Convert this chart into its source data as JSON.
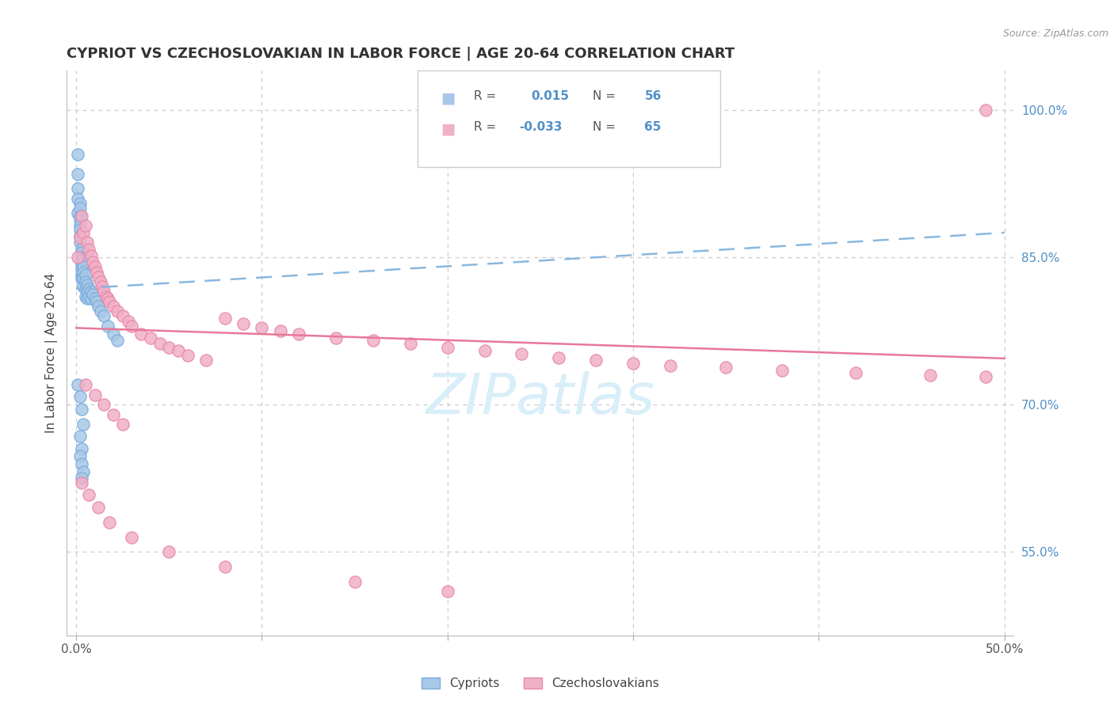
{
  "title": "CYPRIOT VS CZECHOSLOVAKIAN IN LABOR FORCE | AGE 20-64 CORRELATION CHART",
  "source": "Source: ZipAtlas.com",
  "ylabel": "In Labor Force | Age 20-64",
  "xlim": [
    -0.005,
    0.505
  ],
  "ylim": [
    0.465,
    1.04
  ],
  "xticks": [
    0.0,
    0.1,
    0.2,
    0.3,
    0.4,
    0.5
  ],
  "xticklabels": [
    "0.0%",
    "",
    "",
    "",
    "",
    "50.0%"
  ],
  "yticks_right": [
    0.55,
    0.7,
    0.85,
    1.0
  ],
  "ytick_right_labels": [
    "55.0%",
    "70.0%",
    "85.0%",
    "100.0%"
  ],
  "grid_color": "#cccccc",
  "background_color": "#ffffff",
  "blue_color": "#a8c8e8",
  "pink_color": "#f0b0c8",
  "blue_edge_color": "#7aabdb",
  "pink_edge_color": "#e888a8",
  "blue_line_color": "#88b8e0",
  "pink_line_color": "#e87898",
  "title_color": "#333333",
  "right_tick_color": "#5090c8",
  "source_color": "#999999",
  "watermark_color": "#d8eef8",
  "blue_trend_y0": 0.818,
  "blue_trend_y1": 0.875,
  "pink_trend_y0": 0.778,
  "pink_trend_y1": 0.747,
  "cypriot_x": [
    0.001,
    0.001,
    0.001,
    0.001,
    0.001,
    0.002,
    0.002,
    0.002,
    0.002,
    0.002,
    0.002,
    0.002,
    0.002,
    0.003,
    0.003,
    0.003,
    0.003,
    0.003,
    0.003,
    0.003,
    0.003,
    0.004,
    0.004,
    0.004,
    0.004,
    0.004,
    0.005,
    0.005,
    0.005,
    0.005,
    0.006,
    0.006,
    0.006,
    0.007,
    0.007,
    0.008,
    0.008,
    0.009,
    0.01,
    0.011,
    0.012,
    0.013,
    0.015,
    0.017,
    0.02,
    0.022,
    0.001,
    0.002,
    0.003,
    0.004,
    0.002,
    0.003,
    0.002,
    0.003,
    0.004,
    0.003
  ],
  "cypriot_y": [
    0.955,
    0.935,
    0.92,
    0.91,
    0.895,
    0.905,
    0.9,
    0.892,
    0.888,
    0.882,
    0.878,
    0.872,
    0.865,
    0.858,
    0.855,
    0.85,
    0.845,
    0.842,
    0.838,
    0.832,
    0.828,
    0.848,
    0.84,
    0.835,
    0.828,
    0.82,
    0.832,
    0.825,
    0.818,
    0.81,
    0.822,
    0.815,
    0.808,
    0.818,
    0.81,
    0.815,
    0.808,
    0.812,
    0.808,
    0.805,
    0.8,
    0.795,
    0.79,
    0.78,
    0.772,
    0.765,
    0.72,
    0.708,
    0.695,
    0.68,
    0.668,
    0.655,
    0.648,
    0.64,
    0.632,
    0.625
  ],
  "czech_x": [
    0.001,
    0.002,
    0.003,
    0.004,
    0.005,
    0.006,
    0.007,
    0.008,
    0.009,
    0.01,
    0.011,
    0.012,
    0.013,
    0.014,
    0.015,
    0.016,
    0.017,
    0.018,
    0.02,
    0.022,
    0.025,
    0.028,
    0.03,
    0.035,
    0.04,
    0.045,
    0.05,
    0.055,
    0.06,
    0.07,
    0.08,
    0.09,
    0.1,
    0.11,
    0.12,
    0.14,
    0.16,
    0.18,
    0.2,
    0.22,
    0.24,
    0.26,
    0.28,
    0.3,
    0.32,
    0.35,
    0.38,
    0.42,
    0.46,
    0.49,
    0.005,
    0.01,
    0.015,
    0.02,
    0.025,
    0.003,
    0.007,
    0.012,
    0.018,
    0.03,
    0.05,
    0.08,
    0.15,
    0.2,
    0.49
  ],
  "czech_y": [
    0.85,
    0.87,
    0.892,
    0.875,
    0.882,
    0.865,
    0.858,
    0.852,
    0.845,
    0.84,
    0.835,
    0.83,
    0.825,
    0.82,
    0.815,
    0.81,
    0.808,
    0.805,
    0.8,
    0.795,
    0.79,
    0.785,
    0.78,
    0.772,
    0.768,
    0.762,
    0.758,
    0.755,
    0.75,
    0.745,
    0.788,
    0.782,
    0.778,
    0.775,
    0.772,
    0.768,
    0.765,
    0.762,
    0.758,
    0.755,
    0.752,
    0.748,
    0.745,
    0.742,
    0.74,
    0.738,
    0.735,
    0.732,
    0.73,
    0.728,
    0.72,
    0.71,
    0.7,
    0.69,
    0.68,
    0.62,
    0.608,
    0.595,
    0.58,
    0.565,
    0.55,
    0.535,
    0.52,
    0.51,
    1.0
  ]
}
